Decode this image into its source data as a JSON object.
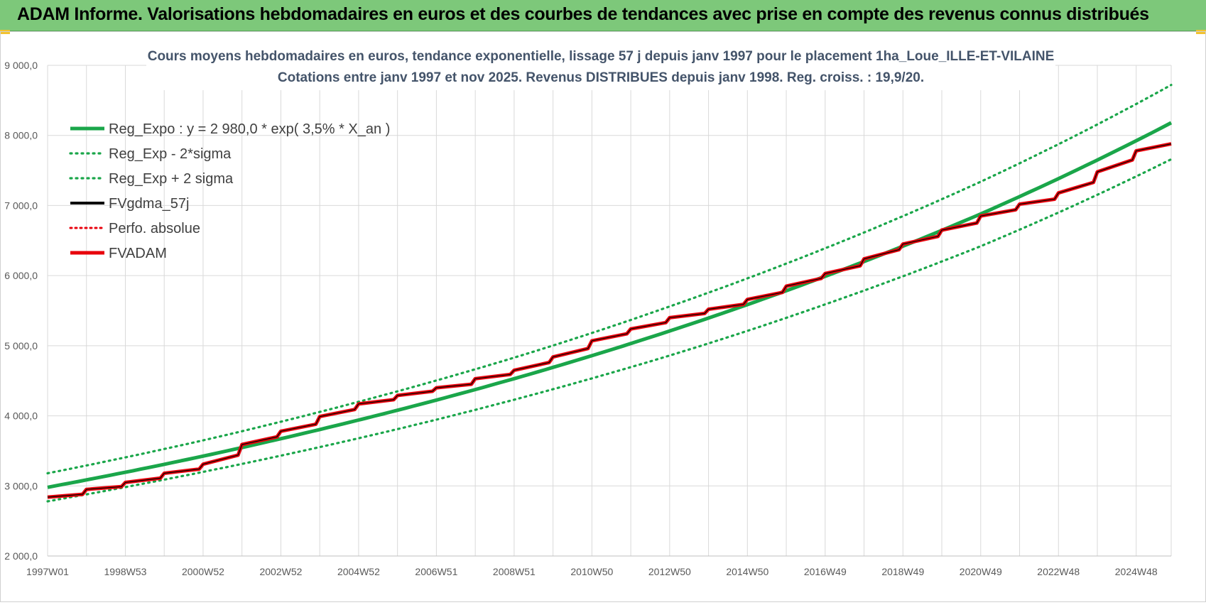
{
  "banner": {
    "title": "ADAM Informe. Valorisations hebdomadaires en euros et des courbes de tendances avec prise en compte des revenus connus distribués"
  },
  "colors": {
    "banner_bg": "#7dc87a",
    "reg_green": "#1aa64a",
    "red": "#e8000b",
    "black": "#000000",
    "title_text": "#44546a",
    "grid": "#d9d9d9"
  },
  "chart_data": {
    "type": "line",
    "title_line1": "Cours moyens hebdomadaires en euros, tendance exponentielle, lissage 57 j depuis janv 1997 pour le placement 1ha_Loue_ILLE-ET-VILAINE",
    "title_line2": "Cotations entre janv 1997 et nov 2025. Revenus DISTRIBUES depuis janv 1998. Reg. croiss. : 19,9/20.",
    "xlabel": "",
    "ylabel": "",
    "x_range": [
      1997.0,
      2025.9
    ],
    "ylim": [
      2000,
      9000
    ],
    "y_ticks": [
      2000,
      3000,
      4000,
      5000,
      6000,
      7000,
      8000,
      9000
    ],
    "y_tick_labels": [
      "2 000,0",
      "3 000,0",
      "4 000,0",
      "5 000,0",
      "6 000,0",
      "7 000,0",
      "8 000,0",
      "9 000,0"
    ],
    "x_tick_labels": [
      "1997W01",
      "1998W53",
      "2000W52",
      "2002W52",
      "2004W52",
      "2006W51",
      "2008W51",
      "2010W50",
      "2012W50",
      "2014W50",
      "2016W49",
      "2018W49",
      "2020W49",
      "2022W48",
      "2024W48"
    ],
    "x_tick_positions": [
      1997,
      1999,
      2001,
      2003,
      2005,
      2007,
      2009,
      2011,
      2013,
      2015,
      2017,
      2019,
      2021,
      2023,
      2025
    ],
    "grid": true,
    "legend_position": "top-left",
    "legend": [
      {
        "label": "Reg_Expo : y = 2 980,0 * exp( 3,5% *  X_an )",
        "style": "solid-green"
      },
      {
        "label": "Reg_Exp - 2*sigma",
        "style": "dotted-green"
      },
      {
        "label": "Reg_Exp + 2 sigma",
        "style": "dotted-green"
      },
      {
        "label": "FVgdma_57j",
        "style": "solid-black"
      },
      {
        "label": "Perfo. absolue",
        "style": "dotted-red"
      },
      {
        "label": "FVADAM",
        "style": "solid-red"
      }
    ],
    "series": [
      {
        "name": "Reg_Expo",
        "x": [
          1997,
          2001,
          2005,
          2009,
          2013,
          2017,
          2021,
          2025.9
        ],
        "values": [
          2980,
          3425,
          3940,
          4530,
          5210,
          5990,
          6880,
          8180
        ]
      },
      {
        "name": "Reg_Exp - 2*sigma",
        "x": [
          1997,
          2001,
          2005,
          2009,
          2013,
          2017,
          2021,
          2025.9
        ],
        "values": [
          2780,
          3200,
          3680,
          4230,
          4860,
          5590,
          6420,
          7660
        ]
      },
      {
        "name": "Reg_Exp + 2 sigma",
        "x": [
          1997,
          2001,
          2005,
          2009,
          2013,
          2017,
          2021,
          2025.9
        ],
        "values": [
          3180,
          3650,
          4200,
          4830,
          5560,
          6390,
          7340,
          8720
        ]
      },
      {
        "name": "FVADAM",
        "x": [
          1997.0,
          1997.9,
          1998.0,
          1998.9,
          1999.0,
          1999.9,
          2000.0,
          2000.9,
          2001.0,
          2001.9,
          2002.0,
          2002.9,
          2003.0,
          2003.9,
          2004.0,
          2004.9,
          2005.0,
          2005.9,
          2006.0,
          2006.9,
          2007.0,
          2007.9,
          2008.0,
          2008.9,
          2009.0,
          2009.9,
          2010.0,
          2010.9,
          2011.0,
          2011.9,
          2012.0,
          2012.9,
          2013.0,
          2013.9,
          2014.0,
          2014.9,
          2015.0,
          2015.9,
          2016.0,
          2016.9,
          2017.0,
          2017.9,
          2018.0,
          2018.9,
          2019.0,
          2019.9,
          2020.0,
          2020.9,
          2021.0,
          2021.9,
          2022.0,
          2022.9,
          2023.0,
          2023.9,
          2024.0,
          2024.9,
          2025.0,
          2025.9
        ],
        "values": [
          2840,
          2880,
          2950,
          2990,
          3050,
          3110,
          3180,
          3240,
          3310,
          3440,
          3590,
          3700,
          3780,
          3880,
          3990,
          4090,
          4170,
          4230,
          4290,
          4350,
          4400,
          4450,
          4530,
          4590,
          4650,
          4760,
          4840,
          4960,
          5070,
          5170,
          5240,
          5330,
          5400,
          5460,
          5520,
          5590,
          5660,
          5760,
          5850,
          5960,
          6030,
          6140,
          6240,
          6370,
          6450,
          6560,
          6650,
          6750,
          6850,
          6940,
          7020,
          7090,
          7180,
          7330,
          7480,
          7650,
          7780,
          7880
        ]
      }
    ]
  }
}
